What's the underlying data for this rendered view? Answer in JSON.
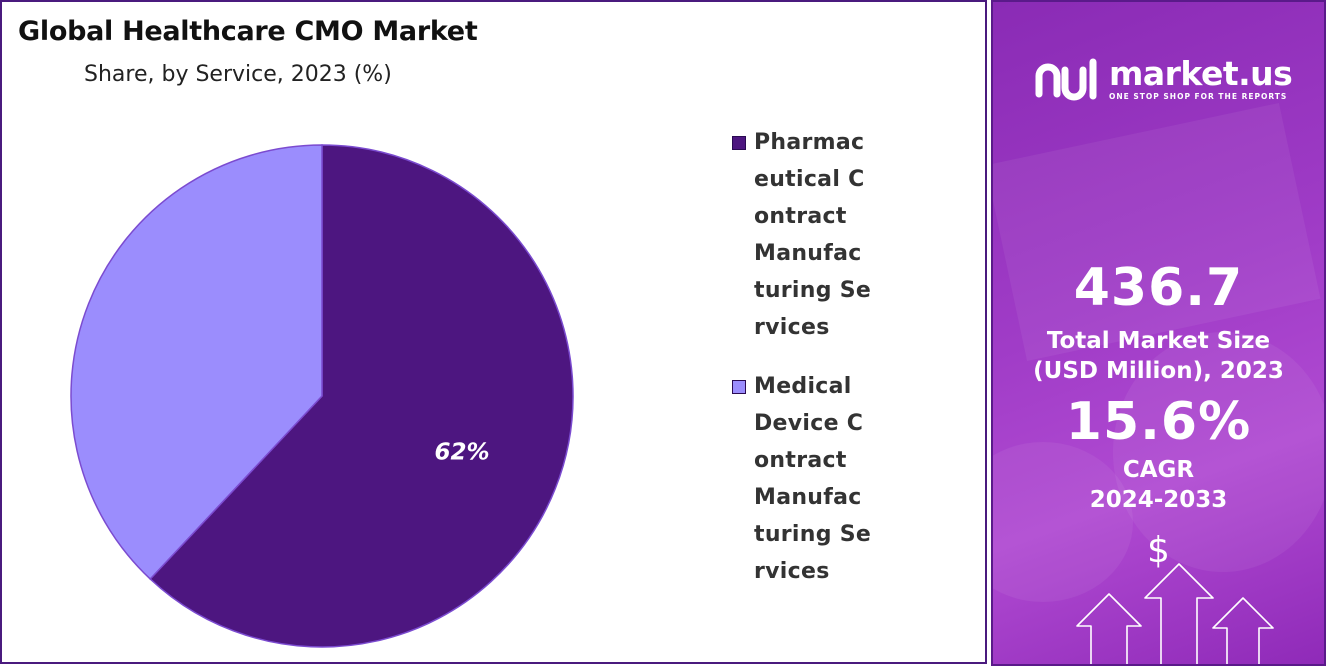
{
  "chart_data": {
    "type": "pie",
    "title": "Global Healthcare CMO Market",
    "subtitle": "Share, by Service, 2023 (%)",
    "slices": [
      {
        "label": "Pharmaceutical Contract Manufacturing Services",
        "value": 62,
        "data_label": "62%",
        "color": "#4d1680"
      },
      {
        "label": "Medical Device Contract Manufacturing Services",
        "value": 38,
        "data_label": "",
        "color": "#9b8dfd"
      }
    ],
    "legend_position": "right"
  },
  "colors": {
    "slice_stroke": "#7b4bd0",
    "panel_accent": "#9d38c4"
  },
  "brand": {
    "name": "market.us",
    "tagline": "ONE STOP SHOP FOR THE REPORTS",
    "icon": "market-us-logo-icon"
  },
  "stats": {
    "market_size_value": "436.7",
    "market_size_label_1": "Total Market Size",
    "market_size_label_2": "(USD Million), 2023",
    "cagr_value": "15.6%",
    "cagr_label_1": "CAGR",
    "cagr_label_2": "2024-2033",
    "currency_symbol": "$"
  }
}
